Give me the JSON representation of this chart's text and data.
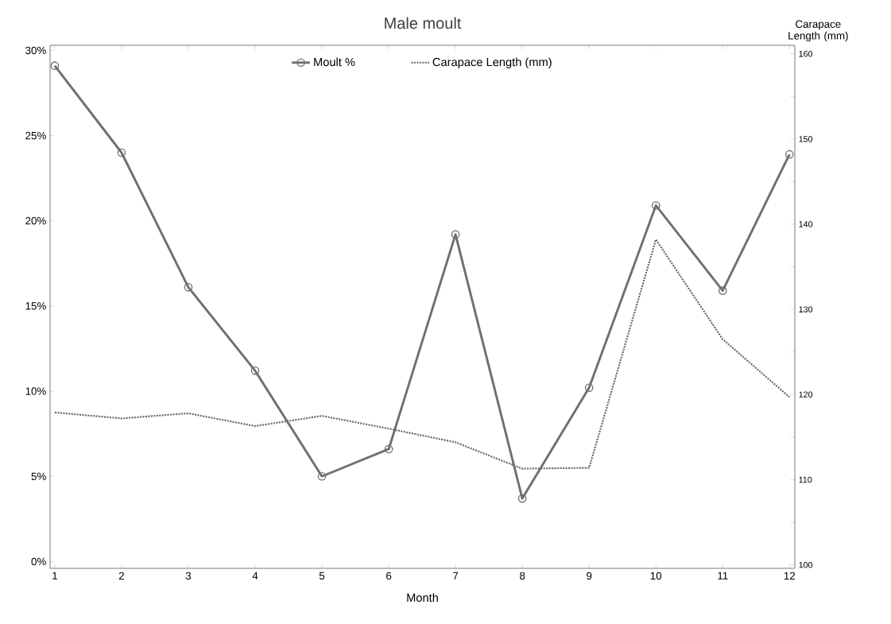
{
  "chart_data": {
    "type": "line",
    "title": "Male moult",
    "xlabel": "Month",
    "y2label": "Carapace Length (mm)",
    "x": [
      1,
      2,
      3,
      4,
      5,
      6,
      7,
      8,
      9,
      10,
      11,
      12
    ],
    "series": [
      {
        "name": "Moult %",
        "color": "#707070",
        "marker": "circle",
        "line_style": "solid",
        "values": [
          29.1,
          24.0,
          16.1,
          11.2,
          5.0,
          6.6,
          19.2,
          3.7,
          10.2,
          20.9,
          15.9,
          23.9
        ]
      },
      {
        "name": "Carapace Length (mm)",
        "color": "#6a6a6a",
        "marker": "none",
        "line_style": "dotted",
        "axis": "y2",
        "values": [
          117.9,
          117.2,
          117.8,
          116.3,
          117.5,
          116.0,
          114.4,
          111.3,
          111.4,
          138.2,
          126.5,
          119.7
        ]
      }
    ],
    "xlim": [
      0.93,
      12.08
    ],
    "xticks": [
      1,
      2,
      3,
      4,
      5,
      6,
      7,
      8,
      9,
      10,
      11,
      12
    ],
    "ylim": [
      -0.4,
      30.3
    ],
    "yticks": [
      {
        "value": 0,
        "label": "0%"
      },
      {
        "value": 5,
        "label": "5%"
      },
      {
        "value": 10,
        "label": "10%"
      },
      {
        "value": 15,
        "label": "15%"
      },
      {
        "value": 20,
        "label": "20%"
      },
      {
        "value": 25,
        "label": "25%"
      },
      {
        "value": 30,
        "label": "30%"
      }
    ],
    "y2lim": [
      99.6,
      161.0
    ],
    "y2ticks": [
      100,
      {
        "value": 105,
        "label": null
      },
      110,
      {
        "value": 115,
        "label": null
      },
      120,
      {
        "value": 125,
        "label": null
      },
      130,
      {
        "value": 135,
        "label": null
      },
      140,
      {
        "value": 145,
        "label": null
      },
      150,
      {
        "value": 155,
        "label": null
      },
      160
    ],
    "legend": "top",
    "grid": false
  }
}
